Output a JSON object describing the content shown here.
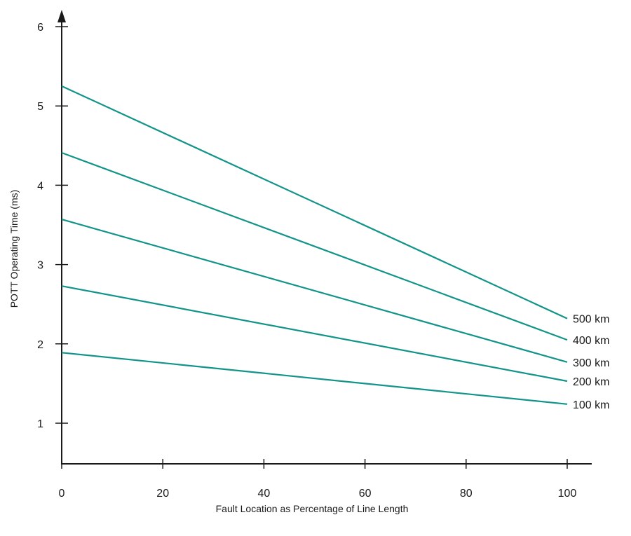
{
  "chart_data": {
    "type": "line",
    "title": "",
    "xlabel": "Fault Location as Percentage of Line Length",
    "ylabel": "POTT Operating Time (ms)",
    "xlim": [
      0,
      100
    ],
    "ylim": [
      0.5,
      6.3
    ],
    "x_ticks": [
      0,
      20,
      40,
      60,
      80,
      100
    ],
    "y_ticks": [
      1,
      2,
      3,
      4,
      5,
      6
    ],
    "grid": false,
    "legend": "inline labels at right end of lines",
    "colors": {
      "series": "#12948a",
      "axis": "#1a1a1a"
    },
    "series": [
      {
        "name": "500 km",
        "x": [
          0,
          100
        ],
        "y": [
          5.25,
          2.32
        ]
      },
      {
        "name": "400 km",
        "x": [
          0,
          100
        ],
        "y": [
          4.41,
          2.05
        ]
      },
      {
        "name": "300 km",
        "x": [
          0,
          100
        ],
        "y": [
          3.57,
          1.77
        ]
      },
      {
        "name": "200 km",
        "x": [
          0,
          100
        ],
        "y": [
          2.73,
          1.53
        ]
      },
      {
        "name": "100 km",
        "x": [
          0,
          100
        ],
        "y": [
          1.89,
          1.24
        ]
      }
    ]
  }
}
